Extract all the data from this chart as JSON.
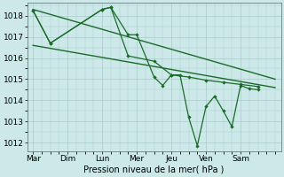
{
  "bg_color": "#cce8e8",
  "grid_color": "#aacccc",
  "line_color": "#1a6b2a",
  "ylim": [
    1011.6,
    1018.6
  ],
  "yticks": [
    1012,
    1013,
    1014,
    1015,
    1016,
    1017,
    1018
  ],
  "xlabel": "Pression niveau de la mer( hPa )",
  "day_labels": [
    "Mar",
    "Dim",
    "Lun",
    "Mer",
    "Jeu",
    "Ven",
    "Sam"
  ],
  "day_positions": [
    0,
    24,
    48,
    72,
    96,
    120,
    144
  ],
  "xlim": [
    -4,
    172
  ],
  "trend1_x": [
    0,
    168
  ],
  "trend1_y": [
    1018.3,
    1015.0
  ],
  "trend2_x": [
    0,
    168
  ],
  "trend2_y": [
    1016.6,
    1014.6
  ],
  "line1_x": [
    0,
    12,
    48,
    54,
    66,
    72,
    84,
    90,
    96,
    102,
    108,
    114,
    120,
    126,
    132,
    138,
    144,
    150,
    156
  ],
  "line1_y": [
    1018.25,
    1016.7,
    1018.3,
    1018.4,
    1017.1,
    1017.1,
    1015.1,
    1014.7,
    1015.2,
    1015.2,
    1013.2,
    1011.85,
    1013.7,
    1014.2,
    1013.5,
    1012.75,
    1014.7,
    1014.55,
    1014.5
  ],
  "line2_x": [
    0,
    12,
    48,
    54,
    66,
    84,
    96,
    108,
    120,
    132,
    144,
    156
  ],
  "line2_y": [
    1018.25,
    1016.7,
    1018.3,
    1018.4,
    1016.1,
    1015.85,
    1015.2,
    1015.1,
    1014.95,
    1014.85,
    1014.75,
    1014.65
  ]
}
